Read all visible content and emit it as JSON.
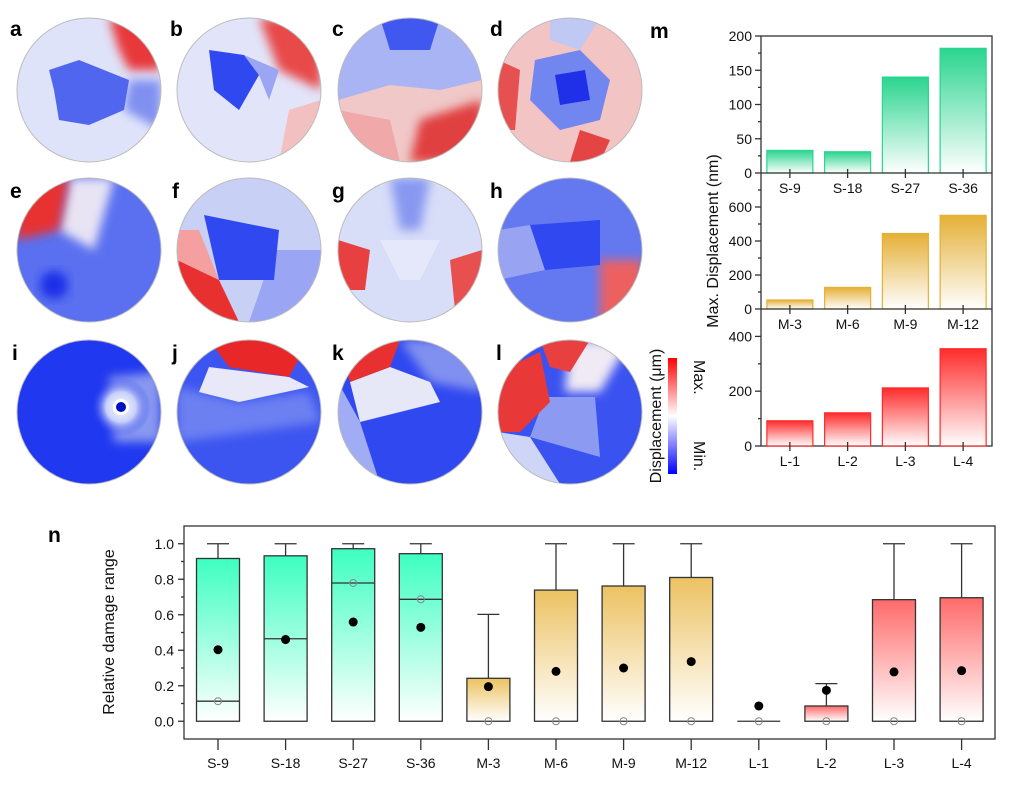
{
  "panel_labels": {
    "a": "a",
    "b": "b",
    "c": "c",
    "d": "d",
    "e": "e",
    "f": "f",
    "g": "g",
    "h": "h",
    "i": "i",
    "j": "j",
    "k": "k",
    "l": "l",
    "m": "m",
    "n": "n"
  },
  "colorbar": {
    "title": "Displacement (μm)",
    "max_label": "Max.",
    "min_label": "Min.",
    "max_color": "#ff0000",
    "mid_color": "#ffffff",
    "min_color": "#0000ff"
  },
  "chart_data": [
    {
      "type": "bar",
      "panel": "m",
      "ylabel": "Max. Displacement (nm)",
      "subplots": [
        {
          "categories": [
            "S-9",
            "S-18",
            "S-27",
            "S-36"
          ],
          "values": [
            33,
            31,
            140,
            182
          ],
          "ylim": [
            0,
            200
          ],
          "yticks": [
            0,
            50,
            100,
            150,
            200
          ],
          "color": "#1fd38a"
        },
        {
          "categories": [
            "M-3",
            "M-6",
            "M-9",
            "M-12"
          ],
          "values": [
            53,
            127,
            444,
            551
          ],
          "ylim": [
            0,
            800
          ],
          "yticks": [
            0,
            200,
            400,
            600
          ],
          "color": "#e4ac2c"
        },
        {
          "categories": [
            "L-1",
            "L-2",
            "L-3",
            "L-4"
          ],
          "values": [
            92,
            121,
            212,
            355
          ],
          "ylim": [
            0,
            500
          ],
          "yticks": [
            0,
            200,
            400
          ],
          "color": "#ff2020"
        }
      ]
    },
    {
      "type": "box",
      "panel": "n",
      "ylabel": "Relative damage range",
      "ylim": [
        -0.1,
        1.1
      ],
      "yticks": [
        "0.0",
        "0.2",
        "0.4",
        "0.6",
        "0.8",
        "1.0"
      ],
      "categories": [
        "S-9",
        "S-18",
        "S-27",
        "S-36",
        "M-3",
        "M-6",
        "M-9",
        "M-12",
        "L-1",
        "L-2",
        "L-3",
        "L-4"
      ],
      "boxes": [
        {
          "q1": 0,
          "median": 0.113,
          "q3": 0.917,
          "whisker_high": 1.0,
          "mean": 0.403,
          "group": "S"
        },
        {
          "q1": 0,
          "median": 0.465,
          "q3": 0.932,
          "whisker_high": 1.0,
          "mean": 0.46,
          "group": "S"
        },
        {
          "q1": 0,
          "median": 0.779,
          "q3": 0.972,
          "whisker_high": 1.0,
          "mean": 0.559,
          "group": "S"
        },
        {
          "q1": 0,
          "median": 0.687,
          "q3": 0.944,
          "whisker_high": 1.0,
          "mean": 0.529,
          "group": "S"
        },
        {
          "q1": 0,
          "median": 0,
          "q3": 0.242,
          "whisker_high": 0.602,
          "mean": 0.195,
          "group": "M"
        },
        {
          "q1": 0,
          "median": 0,
          "q3": 0.739,
          "whisker_high": 1.0,
          "mean": 0.281,
          "group": "M"
        },
        {
          "q1": 0,
          "median": 0,
          "q3": 0.762,
          "whisker_high": 1.0,
          "mean": 0.3,
          "group": "M"
        },
        {
          "q1": 0,
          "median": 0,
          "q3": 0.81,
          "whisker_high": 1.0,
          "mean": 0.336,
          "group": "M"
        },
        {
          "q1": 0,
          "median": 0,
          "q3": 0,
          "whisker_high": 0,
          "mean": 0.086,
          "group": "L"
        },
        {
          "q1": 0,
          "median": 0,
          "q3": 0.086,
          "whisker_high": 0.212,
          "mean": 0.174,
          "group": "L"
        },
        {
          "q1": 0,
          "median": 0,
          "q3": 0.685,
          "whisker_high": 1.0,
          "mean": 0.278,
          "group": "L"
        },
        {
          "q1": 0,
          "median": 0,
          "q3": 0.696,
          "whisker_high": 1.0,
          "mean": 0.285,
          "group": "L"
        }
      ],
      "group_colors": {
        "S": "#3dffc0",
        "M": "#ecc262",
        "L": "#ff6a6a"
      }
    }
  ]
}
